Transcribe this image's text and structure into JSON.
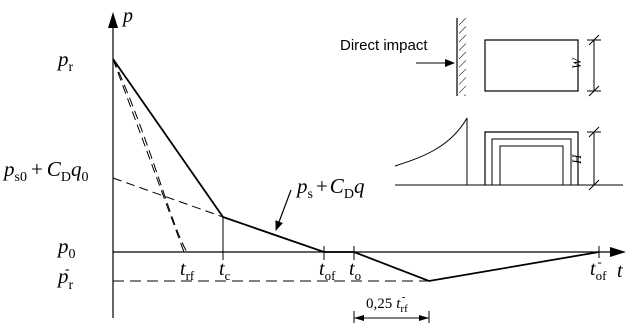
{
  "axes": {
    "y_label": "p",
    "x_label": "t"
  },
  "y_labels": {
    "p_r": {
      "main": "p",
      "sub": "r"
    },
    "p_s0_cd_q0": {
      "p": "p",
      "sub_s0": "s0",
      "plus": "+",
      "C": "C",
      "sub_D": "D",
      "q": "q",
      "sub_0": "0"
    },
    "p_0": {
      "main": "p",
      "sub": "0"
    },
    "p_r_neg": {
      "main": "p",
      "sub": "r",
      "sup": "-"
    }
  },
  "x_labels": {
    "t_rf": {
      "main": "t",
      "sub": "rf"
    },
    "t_c": {
      "main": "t",
      "sub": "c"
    },
    "t_of": {
      "main": "t",
      "sub": "of"
    },
    "t_o": {
      "main": "t",
      "sub": "o"
    },
    "t_of_neg": {
      "main": "t",
      "sub": "of",
      "sup": "-"
    }
  },
  "curve_annotation": {
    "p": "p",
    "sub_s": "s",
    "plus": "+",
    "C": "C",
    "sub_D": "D",
    "q": "q"
  },
  "interval": {
    "coef": "0,25",
    "t": "t",
    "sub": "rf",
    "sup": "-"
  },
  "inset": {
    "direct_impact": "Direct impact",
    "width_label": "W",
    "height_label": "H"
  }
}
